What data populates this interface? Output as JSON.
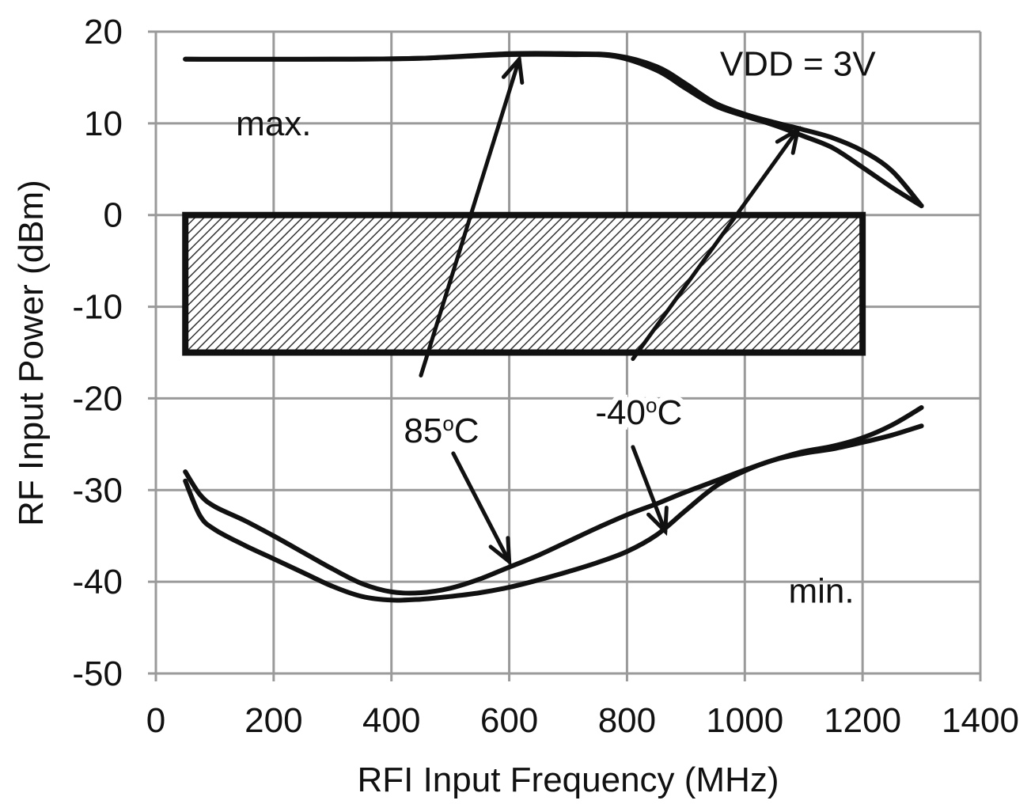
{
  "chart_data": {
    "type": "line",
    "title": "",
    "xlabel": "RFI Input Frequency (MHz)",
    "ylabel": "RF Input Power (dBm)",
    "xlim": [
      0,
      1400
    ],
    "ylim": [
      -50,
      20
    ],
    "xticks": [
      0,
      200,
      400,
      600,
      800,
      1000,
      1200,
      1400
    ],
    "yticks": [
      20,
      10,
      0,
      -10,
      -20,
      -30,
      -40,
      -50
    ],
    "grid": true,
    "region": {
      "x": [
        50,
        1200
      ],
      "y": [
        -15,
        0
      ],
      "fill": "hatched"
    },
    "series": [
      {
        "group": "max.",
        "temperature": "85oC",
        "x": [
          50,
          300,
          450,
          600,
          700,
          780,
          850,
          900,
          950,
          1000,
          1050,
          1100,
          1150,
          1200,
          1250,
          1300
        ],
        "y": [
          17,
          17,
          17.1,
          17.5,
          17.5,
          17.3,
          15.8,
          13.8,
          11.9,
          10.8,
          9.8,
          8.6,
          7.3,
          5.2,
          3,
          1
        ]
      },
      {
        "group": "max.",
        "temperature": "-40oC",
        "x": [
          50,
          300,
          450,
          600,
          700,
          780,
          850,
          900,
          950,
          1000,
          1050,
          1100,
          1150,
          1200,
          1250,
          1300
        ],
        "y": [
          17,
          17,
          17.1,
          17.6,
          17.6,
          17.4,
          16.2,
          14.3,
          12.2,
          11,
          10.1,
          9.3,
          8.4,
          7,
          4.8,
          1
        ]
      },
      {
        "group": "min.",
        "temperature": "85oC",
        "x": [
          50,
          75,
          100,
          150,
          200,
          250,
          300,
          350,
          400,
          450,
          500,
          550,
          600,
          650,
          700,
          750,
          800,
          850,
          900,
          950,
          1000,
          1050,
          1100,
          1150,
          1200,
          1250,
          1300
        ],
        "y": [
          -28,
          -30.5,
          -31.8,
          -33.3,
          -35,
          -36.8,
          -38.6,
          -40.2,
          -41.1,
          -41.2,
          -40.7,
          -39.7,
          -38.4,
          -37.1,
          -35.6,
          -34.1,
          -32.7,
          -31.5,
          -30.2,
          -29,
          -27.8,
          -26.7,
          -25.8,
          -25.2,
          -24.3,
          -22.9,
          -21
        ]
      },
      {
        "group": "min.",
        "temperature": "-40oC",
        "x": [
          50,
          75,
          100,
          150,
          200,
          250,
          300,
          350,
          400,
          450,
          500,
          550,
          600,
          650,
          700,
          750,
          800,
          850,
          900,
          950,
          1000,
          1050,
          1100,
          1150,
          1200,
          1250,
          1300
        ],
        "y": [
          -29,
          -32.8,
          -34.3,
          -36,
          -37.5,
          -39,
          -40.5,
          -41.6,
          -42,
          -41.9,
          -41.6,
          -41.2,
          -40.6,
          -39.8,
          -38.9,
          -37.9,
          -36.7,
          -34.9,
          -32.2,
          -29.6,
          -27.9,
          -26.7,
          -26,
          -25.5,
          -24.8,
          -24,
          -23
        ]
      }
    ],
    "annotations": [
      {
        "text": "VDD = 3V",
        "x": 1090,
        "y": 16.5,
        "anchor": "middle"
      },
      {
        "text": "max.",
        "x": 200,
        "y": 10,
        "anchor": "middle"
      },
      {
        "text": "min.",
        "x": 1130,
        "y": -41,
        "anchor": "middle"
      },
      {
        "label": "85",
        "sup": "o",
        "unit": "C",
        "x": 485,
        "y": -23.5,
        "anchor": "middle"
      },
      {
        "label": "-40",
        "sup": "o",
        "unit": "C",
        "x": 820,
        "y": -21.5,
        "anchor": "middle"
      }
    ],
    "arrows": [
      {
        "from": [
          450,
          -17.5
        ],
        "to": [
          617,
          17
        ]
      },
      {
        "from": [
          810,
          -15.7
        ],
        "to": [
          1090,
          9.3
        ]
      },
      {
        "from": [
          505,
          -26
        ],
        "to": [
          600,
          -37.8
        ]
      },
      {
        "from": [
          810,
          -25.3
        ],
        "to": [
          865,
          -34.5
        ]
      }
    ]
  }
}
